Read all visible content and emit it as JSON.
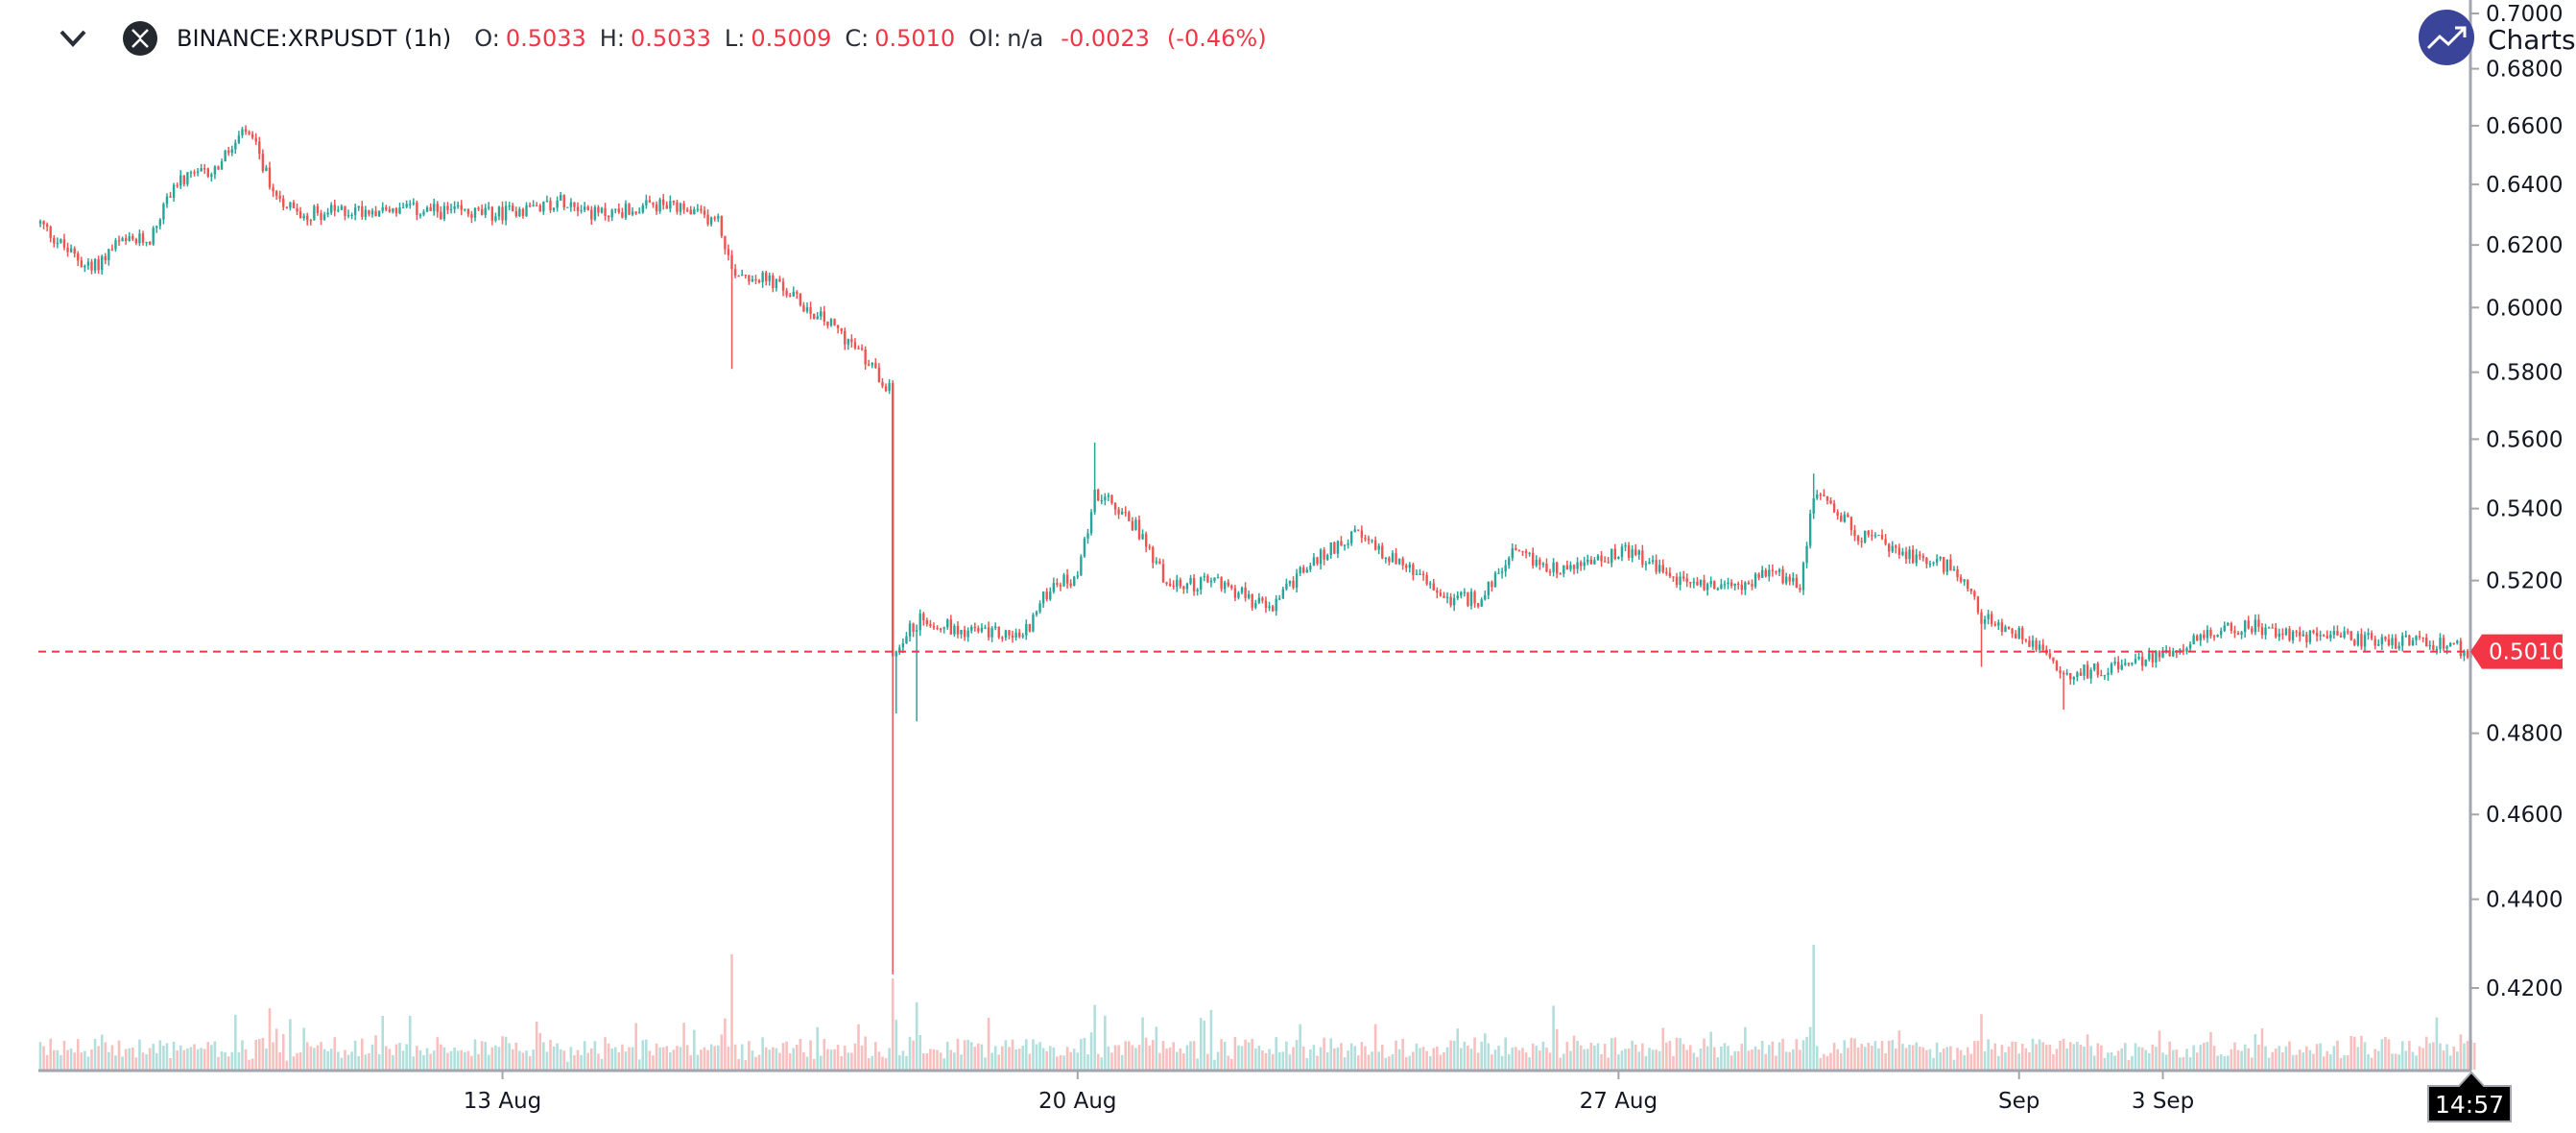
{
  "legend": {
    "symbol": "BINANCE:XRPUSDT (1h)",
    "o_label": "O:",
    "o": "0.5033",
    "h_label": "H:",
    "h": "0.5033",
    "l_label": "L:",
    "l": "0.5009",
    "c_label": "C:",
    "c": "0.5010",
    "oi_label": "OI:",
    "oi": "n/a",
    "change": "-0.0023",
    "change_pct": "(-0.46%)"
  },
  "brand": {
    "text": "Charts"
  },
  "colors": {
    "up": "#26a69a",
    "down": "#ef5350",
    "up_vol": "#b2dfdb",
    "down_vol": "#f7c0bf",
    "last_price": "#f23645",
    "axis": "#a3a6af"
  },
  "chart_data": {
    "type": "candlestick",
    "title": "BINANCE:XRPUSDT (1h)",
    "scale": "log",
    "ylim": [
      0.42,
      0.7
    ],
    "y_ticks": [
      "0.7000",
      "0.6800",
      "0.6600",
      "0.6400",
      "0.6200",
      "0.6000",
      "0.5800",
      "0.5600",
      "0.5400",
      "0.5200",
      "0.4800",
      "0.4600",
      "0.4400",
      "0.4200"
    ],
    "x_ticks": [
      {
        "label": "13 Aug",
        "hour": 135
      },
      {
        "label": "20 Aug",
        "hour": 303
      },
      {
        "label": "27 Aug",
        "hour": 461
      },
      {
        "label": "Sep",
        "hour": 578
      },
      {
        "label": "3 Sep",
        "hour": 620
      }
    ],
    "last_price": "0.5010",
    "time_label": "14:57",
    "total_hours": 712,
    "price_path": [
      [
        0,
        0.627
      ],
      [
        8,
        0.618
      ],
      [
        15,
        0.612
      ],
      [
        22,
        0.62
      ],
      [
        32,
        0.622
      ],
      [
        39,
        0.64
      ],
      [
        51,
        0.645
      ],
      [
        60,
        0.658
      ],
      [
        63,
        0.652
      ],
      [
        68,
        0.638
      ],
      [
        75,
        0.63
      ],
      [
        99,
        0.632
      ],
      [
        133,
        0.63
      ],
      [
        154,
        0.635
      ],
      [
        162,
        0.63
      ],
      [
        181,
        0.633
      ],
      [
        198,
        0.628
      ],
      [
        202,
        0.612
      ],
      [
        214,
        0.608
      ],
      [
        224,
        0.6
      ],
      [
        234,
        0.592
      ],
      [
        246,
        0.578
      ],
      [
        248,
        0.575
      ],
      [
        249,
        0.5
      ],
      [
        252,
        0.505
      ],
      [
        258,
        0.51
      ],
      [
        267,
        0.507
      ],
      [
        287,
        0.505
      ],
      [
        296,
        0.52
      ],
      [
        303,
        0.52
      ],
      [
        308,
        0.545
      ],
      [
        320,
        0.535
      ],
      [
        330,
        0.518
      ],
      [
        344,
        0.52
      ],
      [
        359,
        0.512
      ],
      [
        368,
        0.522
      ],
      [
        383,
        0.533
      ],
      [
        397,
        0.525
      ],
      [
        411,
        0.515
      ],
      [
        421,
        0.515
      ],
      [
        430,
        0.527
      ],
      [
        445,
        0.523
      ],
      [
        464,
        0.528
      ],
      [
        478,
        0.52
      ],
      [
        493,
        0.518
      ],
      [
        507,
        0.522
      ],
      [
        514,
        0.518
      ],
      [
        518,
        0.545
      ],
      [
        531,
        0.533
      ],
      [
        546,
        0.527
      ],
      [
        560,
        0.523
      ],
      [
        567,
        0.51
      ],
      [
        584,
        0.503
      ],
      [
        591,
        0.495
      ],
      [
        613,
        0.498
      ],
      [
        632,
        0.505
      ],
      [
        646,
        0.508
      ],
      [
        661,
        0.505
      ],
      [
        680,
        0.504
      ],
      [
        699,
        0.503
      ],
      [
        711,
        0.501
      ]
    ],
    "notable_wicks": [
      {
        "hour": 202,
        "low": 0.581
      },
      {
        "hour": 249,
        "low": 0.423
      },
      {
        "hour": 250,
        "low": 0.485
      },
      {
        "hour": 256,
        "low": 0.483
      },
      {
        "hour": 308,
        "high": 0.559
      },
      {
        "hour": 518,
        "high": 0.55
      },
      {
        "hour": 567,
        "low": 0.497
      },
      {
        "hour": 591,
        "low": 0.486
      }
    ]
  }
}
